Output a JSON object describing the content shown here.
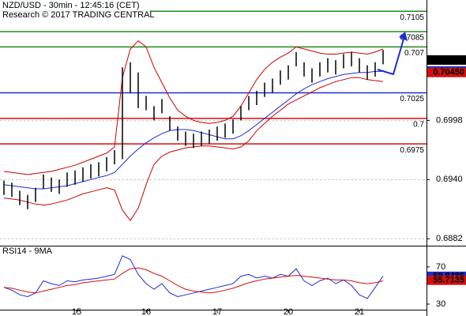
{
  "chart_data": [
    {
      "type": "ohlc",
      "title": "NZD/USD - 30min - 12:45:16 (CET)",
      "subtitle": "Research © 2017 TRADING CENTRAL",
      "x": [
        0,
        1,
        2,
        3,
        4,
        5,
        6,
        7,
        8,
        9,
        10,
        11,
        12,
        13,
        14,
        15,
        16,
        17,
        18,
        19,
        20,
        21,
        22,
        23,
        24,
        25,
        26,
        27,
        28,
        29,
        30,
        31,
        32,
        33,
        34,
        35,
        36,
        37,
        38,
        39,
        40,
        41,
        42,
        43,
        44,
        45,
        46,
        47,
        48
      ],
      "high": [
        0.6939,
        0.6937,
        0.6929,
        0.6925,
        0.6932,
        0.6945,
        0.6942,
        0.694,
        0.6947,
        0.6949,
        0.6952,
        0.6955,
        0.6957,
        0.6962,
        0.6969,
        0.705,
        0.7055,
        0.7045,
        0.7022,
        0.7012,
        0.7019,
        0.7002,
        0.6992,
        0.6987,
        0.6985,
        0.6987,
        0.6989,
        0.6992,
        0.6995,
        0.6999,
        0.7012,
        0.7022,
        0.7027,
        0.7035,
        0.7039,
        0.7047,
        0.7052,
        0.7065,
        0.7055,
        0.7049,
        0.7055,
        0.7059,
        0.7057,
        0.7063,
        0.7065,
        0.7059,
        0.7052,
        0.7055,
        0.7067
      ],
      "low": [
        0.6925,
        0.6923,
        0.6915,
        0.6911,
        0.6918,
        0.6931,
        0.6928,
        0.6926,
        0.6933,
        0.6935,
        0.6938,
        0.6941,
        0.6943,
        0.6948,
        0.6955,
        0.696,
        0.7025,
        0.701,
        0.7008,
        0.6998,
        0.7005,
        0.6988,
        0.6978,
        0.6973,
        0.6971,
        0.6973,
        0.6975,
        0.6978,
        0.6981,
        0.6985,
        0.6998,
        0.7008,
        0.7013,
        0.7021,
        0.7025,
        0.7033,
        0.7038,
        0.7051,
        0.7041,
        0.7035,
        0.7041,
        0.7045,
        0.7043,
        0.7049,
        0.7051,
        0.7045,
        0.7038,
        0.7041,
        0.7053
      ],
      "bar_color": "#000000",
      "series": [
        {
          "color": "#1a2fd0",
          "values": [
            0.6935,
            0.6934,
            0.6933,
            0.6932,
            0.6931,
            0.6931,
            0.6932,
            0.6933,
            0.6934,
            0.6936,
            0.6938,
            0.694,
            0.6942,
            0.6944,
            0.6947,
            0.6955,
            0.6963,
            0.697,
            0.6976,
            0.6981,
            0.6985,
            0.6988,
            0.6989,
            0.6989,
            0.6988,
            0.6986,
            0.6984,
            0.6982,
            0.698,
            0.698,
            0.6983,
            0.6988,
            0.6994,
            0.7,
            0.7006,
            0.7012,
            0.7018,
            0.7024,
            0.7029,
            0.7033,
            0.7036,
            0.7039,
            0.7041,
            0.7043,
            0.7044,
            0.7045,
            0.7045,
            0.7046,
            0.7046
          ]
        },
        {
          "color": "#cc0000",
          "values": [
            0.6948,
            0.6947,
            0.6946,
            0.6945,
            0.6946,
            0.6947,
            0.6948,
            0.695,
            0.6952,
            0.6954,
            0.6957,
            0.696,
            0.6963,
            0.6966,
            0.6972,
            0.704,
            0.7068,
            0.7076,
            0.707,
            0.705,
            0.7035,
            0.702,
            0.7008,
            0.7002,
            0.6998,
            0.6996,
            0.6995,
            0.6996,
            0.6998,
            0.7002,
            0.7012,
            0.7025,
            0.7038,
            0.7048,
            0.7055,
            0.706,
            0.7064,
            0.707,
            0.7068,
            0.7066,
            0.7064,
            0.7063,
            0.7063,
            0.7064,
            0.7065,
            0.7064,
            0.7063,
            0.7065,
            0.7068
          ]
        },
        {
          "color": "#cc0000",
          "values": [
            0.6922,
            0.6921,
            0.692,
            0.6918,
            0.6916,
            0.6915,
            0.6916,
            0.6918,
            0.692,
            0.6923,
            0.6926,
            0.6928,
            0.693,
            0.6932,
            0.693,
            0.691,
            0.69,
            0.6912,
            0.6935,
            0.6955,
            0.6963,
            0.6967,
            0.6969,
            0.6971,
            0.6972,
            0.6973,
            0.6973,
            0.6972,
            0.6971,
            0.697,
            0.6972,
            0.6978,
            0.6988,
            0.6995,
            0.7002,
            0.7008,
            0.7014,
            0.7018,
            0.7022,
            0.7026,
            0.703,
            0.7033,
            0.7036,
            0.7038,
            0.704,
            0.704,
            0.7038,
            0.7037,
            0.7036
          ]
        }
      ],
      "levels": [
        {
          "value": 0.7105,
          "color": "#1f8a1f"
        },
        {
          "value": 0.7085,
          "color": "#1f8a1f"
        },
        {
          "value": 0.707,
          "color": "#1f8a1f"
        },
        {
          "value": 0.7025,
          "color": "#1a2fd0"
        },
        {
          "value": 0.7,
          "color": "#d01010"
        },
        {
          "value": 0.6975,
          "color": "#d01010"
        }
      ],
      "price_tags": [
        {
          "value": 0.70572,
          "color": "#000000"
        },
        {
          "value": 0.70464,
          "color": "#1a2fd0"
        },
        {
          "value": 0.7045,
          "label": "0.70450",
          "color": "#d01010"
        }
      ],
      "xlim": [
        0,
        54
      ],
      "xticks": [
        {
          "value": 9.2,
          "label": "15"
        },
        {
          "value": 18,
          "label": "16"
        },
        {
          "value": 27,
          "label": "17"
        },
        {
          "value": 36,
          "label": "20"
        },
        {
          "value": 45,
          "label": "21"
        }
      ],
      "ylim": [
        0.6876,
        0.7116
      ],
      "yticks": [
        0.6998,
        {
          "value": 0.694,
          "label": "0.6940"
        },
        0.6882
      ],
      "grid": true
    },
    {
      "type": "line",
      "title": "RSI14 - 9MA",
      "x": [
        0,
        1,
        2,
        3,
        4,
        5,
        6,
        7,
        8,
        9,
        10,
        11,
        12,
        13,
        14,
        15,
        16,
        17,
        18,
        19,
        20,
        21,
        22,
        23,
        24,
        25,
        26,
        27,
        28,
        29,
        30,
        31,
        32,
        33,
        34,
        35,
        36,
        37,
        38,
        39,
        40,
        41,
        42,
        43,
        44,
        45,
        46,
        47,
        48
      ],
      "series": [
        {
          "color": "#1a2fd0",
          "values": [
            48,
            45,
            40,
            38,
            42,
            55,
            52,
            50,
            55,
            54,
            56,
            57,
            58,
            60,
            62,
            82,
            78,
            62,
            52,
            46,
            52,
            42,
            38,
            40,
            42,
            44,
            46,
            48,
            50,
            52,
            60,
            62,
            58,
            60,
            58,
            62,
            60,
            68,
            55,
            50,
            55,
            58,
            52,
            56,
            50,
            40,
            36,
            48,
            60
          ]
        },
        {
          "color": "#d01010",
          "values": [
            48,
            47,
            45,
            43,
            42,
            44,
            46,
            48,
            50,
            51,
            53,
            54,
            55,
            56,
            57,
            63,
            68,
            69,
            67,
            63,
            60,
            55,
            50,
            46,
            44,
            43,
            42,
            43,
            45,
            47,
            50,
            53,
            55,
            57,
            58,
            59,
            60,
            61,
            60,
            59,
            58,
            57,
            56,
            56,
            55,
            53,
            52,
            53,
            55
          ]
        }
      ],
      "value_tags": [
        {
          "value": 59.8486,
          "color": "#1a2fd0"
        },
        {
          "value": 55.7135,
          "color": "#d01010"
        }
      ],
      "xlim": [
        0,
        54
      ],
      "ylim": [
        24,
        92
      ],
      "yticks": [
        70,
        30
      ]
    }
  ]
}
